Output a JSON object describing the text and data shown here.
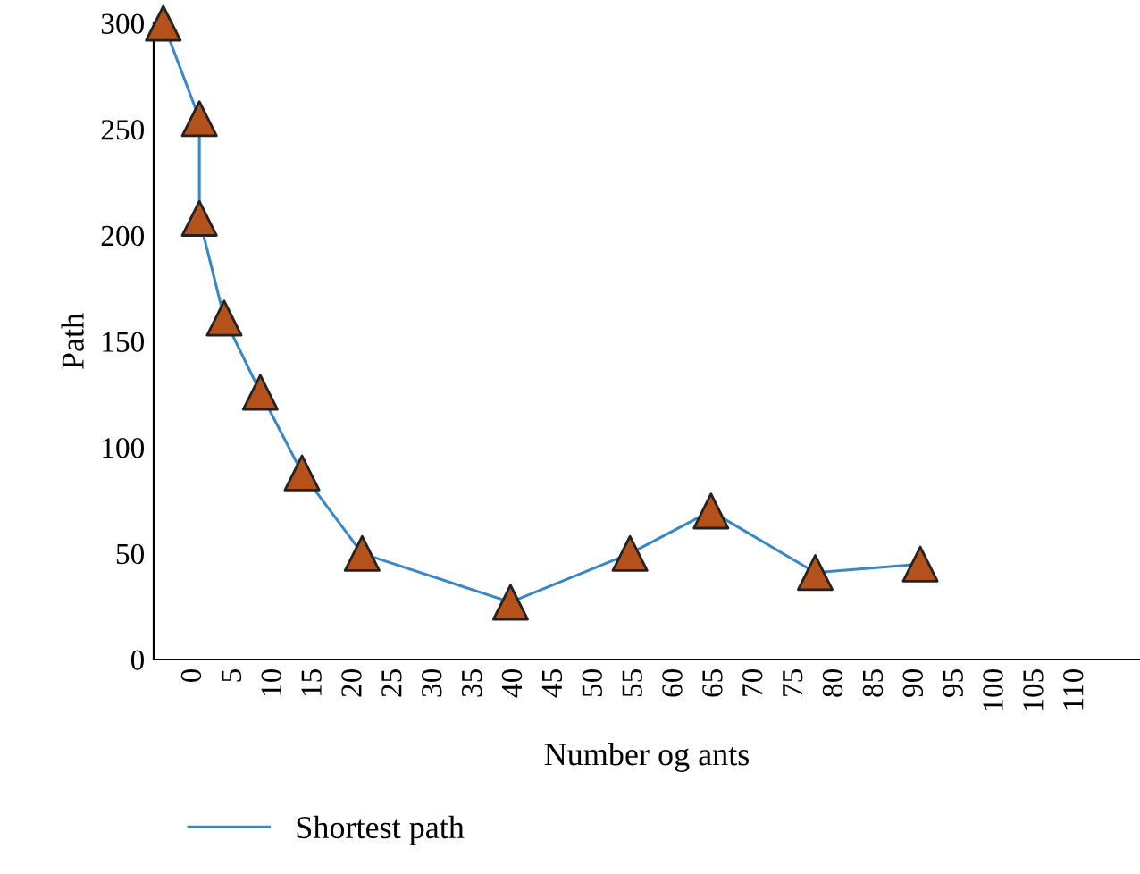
{
  "chart_data": {
    "type": "line",
    "xlabel": "Number og ants",
    "ylabel": "Path",
    "xlim": [
      -5,
      118
    ],
    "xticks": [
      0,
      5,
      10,
      15,
      20,
      25,
      30,
      35,
      40,
      45,
      50,
      55,
      60,
      65,
      70,
      75,
      80,
      85,
      90,
      95,
      100,
      105,
      110
    ],
    "ylim": [
      0,
      300
    ],
    "yticks": [
      0,
      50,
      100,
      150,
      200,
      250,
      300
    ],
    "grid": false,
    "legend": "bottom left",
    "marker": "triangle",
    "line_style": "solid",
    "series": [
      {
        "name": "Shortest path",
        "color": "#3a87c8",
        "colors": [
          "#b5521b",
          "#b5521b",
          "#b5521b",
          "#b5521b",
          "#b5521b",
          "#b5521b",
          "#b5521b",
          "#b5521b",
          "#b5521b",
          "#b5521b",
          "#b5521b",
          "#b5521b"
        ],
        "x": [
          -3.8,
          0.7,
          0.7,
          3.8,
          8.3,
          13.5,
          21,
          39.5,
          54.4,
          64.5,
          77.5,
          90.6
        ],
        "values": [
          300,
          255,
          208,
          161,
          126,
          88,
          50,
          27,
          50,
          70,
          41,
          45
        ]
      }
    ]
  }
}
